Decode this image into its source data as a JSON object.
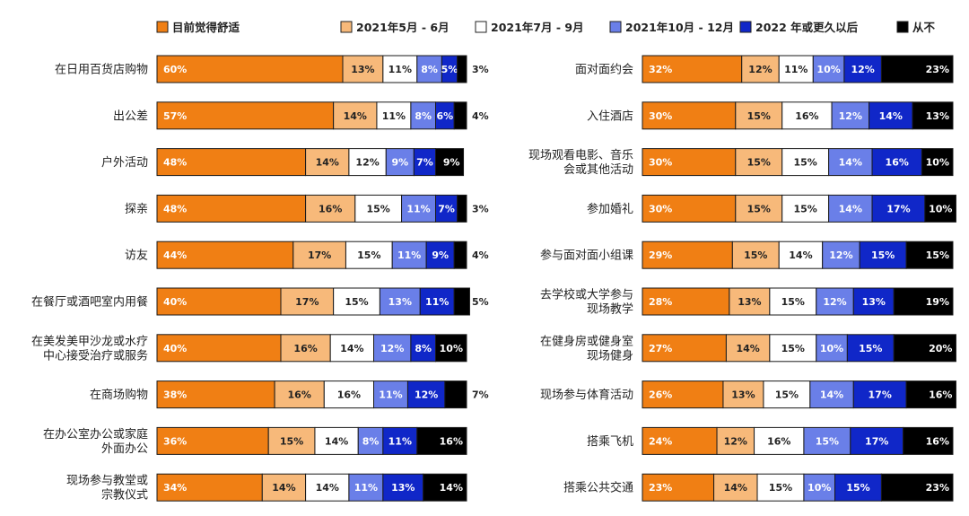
{
  "chart_data": [
    {
      "type": "bar",
      "orientation": "horizontal",
      "stacked": true,
      "categories": [
        "在日用百货店购物",
        "出公差",
        "户外活动",
        "探亲",
        "访友",
        "在餐厅或酒吧室内用餐",
        "在美发美甲沙龙或水疗中心接受治疗或服务",
        "在商场购物",
        "在办公室办公或家庭外面办公",
        "现场参与教堂或宗教仪式"
      ],
      "category_lines": [
        [
          "在日用百货店购物"
        ],
        [
          "出公差"
        ],
        [
          "户外活动"
        ],
        [
          "探亲"
        ],
        [
          "访友"
        ],
        [
          "在餐厅或酒吧室内用餐"
        ],
        [
          "在美发美甲沙龙或水疗",
          "中心接受治疗或服务"
        ],
        [
          "在商场购物"
        ],
        [
          "在办公室办公或家庭",
          "外面办公"
        ],
        [
          "现场参与教堂或",
          "宗教仪式"
        ]
      ],
      "series": [
        {
          "name": "目前觉得舒适",
          "values": [
            60,
            57,
            48,
            48,
            44,
            40,
            40,
            38,
            36,
            34
          ]
        },
        {
          "name": "2021年5月 - 6月",
          "values": [
            13,
            14,
            14,
            16,
            17,
            17,
            16,
            16,
            15,
            14
          ]
        },
        {
          "name": "2021年7月 - 9月",
          "values": [
            11,
            11,
            12,
            15,
            15,
            15,
            14,
            16,
            14,
            14
          ]
        },
        {
          "name": "2021年10月 - 12月",
          "values": [
            8,
            8,
            9,
            11,
            11,
            13,
            12,
            11,
            8,
            11
          ]
        },
        {
          "name": "2022 年或更久以后",
          "values": [
            5,
            6,
            7,
            7,
            9,
            11,
            8,
            12,
            11,
            13
          ]
        },
        {
          "name": "从不",
          "values": [
            3,
            4,
            9,
            3,
            4,
            5,
            10,
            7,
            16,
            14
          ]
        }
      ],
      "labels_outside": [
        [
          false,
          false,
          false,
          false,
          false,
          true
        ],
        [
          false,
          false,
          false,
          false,
          false,
          true
        ],
        [
          false,
          false,
          false,
          false,
          false,
          false
        ],
        [
          false,
          false,
          false,
          false,
          false,
          true
        ],
        [
          false,
          false,
          false,
          false,
          false,
          true
        ],
        [
          false,
          false,
          false,
          false,
          false,
          true
        ],
        [
          false,
          false,
          false,
          false,
          false,
          false
        ],
        [
          false,
          false,
          false,
          false,
          false,
          true
        ],
        [
          false,
          false,
          false,
          false,
          false,
          false
        ],
        [
          false,
          false,
          false,
          false,
          false,
          false
        ]
      ]
    },
    {
      "type": "bar",
      "orientation": "horizontal",
      "stacked": true,
      "categories": [
        "面对面约会",
        "入住酒店",
        "现场观看电影、音乐会或其他活动",
        "参加婚礼",
        "参与面对面小组课",
        "去学校或大学参与现场教学",
        "在健身房或健身室现场健身",
        "现场参与体育活动",
        "搭乘飞机",
        "搭乘公共交通"
      ],
      "category_lines": [
        [
          "面对面约会"
        ],
        [
          "入住酒店"
        ],
        [
          "现场观看电影、音乐",
          "会或其他活动"
        ],
        [
          "参加婚礼"
        ],
        [
          "参与面对面小组课"
        ],
        [
          "去学校或大学参与",
          "现场教学"
        ],
        [
          "在健身房或健身室",
          "现场健身"
        ],
        [
          "现场参与体育活动"
        ],
        [
          "搭乘飞机"
        ],
        [
          "搭乘公共交通"
        ]
      ],
      "series": [
        {
          "name": "目前觉得舒适",
          "values": [
            32,
            30,
            30,
            30,
            29,
            28,
            27,
            26,
            24,
            23
          ]
        },
        {
          "name": "2021年5月 - 6月",
          "values": [
            12,
            15,
            15,
            15,
            15,
            13,
            14,
            13,
            12,
            14
          ]
        },
        {
          "name": "2021年7月 - 9月",
          "values": [
            11,
            16,
            15,
            15,
            14,
            15,
            15,
            15,
            16,
            15
          ]
        },
        {
          "name": "2021年10月 - 12月",
          "values": [
            10,
            12,
            14,
            14,
            12,
            12,
            10,
            14,
            15,
            10
          ]
        },
        {
          "name": "2022 年或更久以后",
          "values": [
            12,
            14,
            16,
            17,
            15,
            13,
            15,
            17,
            17,
            15
          ]
        },
        {
          "name": "从不",
          "values": [
            23,
            13,
            10,
            10,
            15,
            19,
            20,
            16,
            16,
            23
          ]
        }
      ]
    }
  ],
  "legend": [
    {
      "label": "目前觉得舒适",
      "color": "#F07F14"
    },
    {
      "label": "2021年5月 - 6月",
      "color": "#F7B97A"
    },
    {
      "label": "2021年7月 - 9月",
      "color": "#FFFFFF"
    },
    {
      "label": "2021年10月 - 12月",
      "color": "#6A7FE8"
    },
    {
      "label": "2022 年或更久以后",
      "color": "#1027C8"
    },
    {
      "label": "从不",
      "color": "#000000"
    }
  ],
  "value_suffix": "%",
  "label_colors": [
    "#FFFFFF",
    "#222222",
    "#222222",
    "#FFFFFF",
    "#FFFFFF",
    "#FFFFFF"
  ]
}
